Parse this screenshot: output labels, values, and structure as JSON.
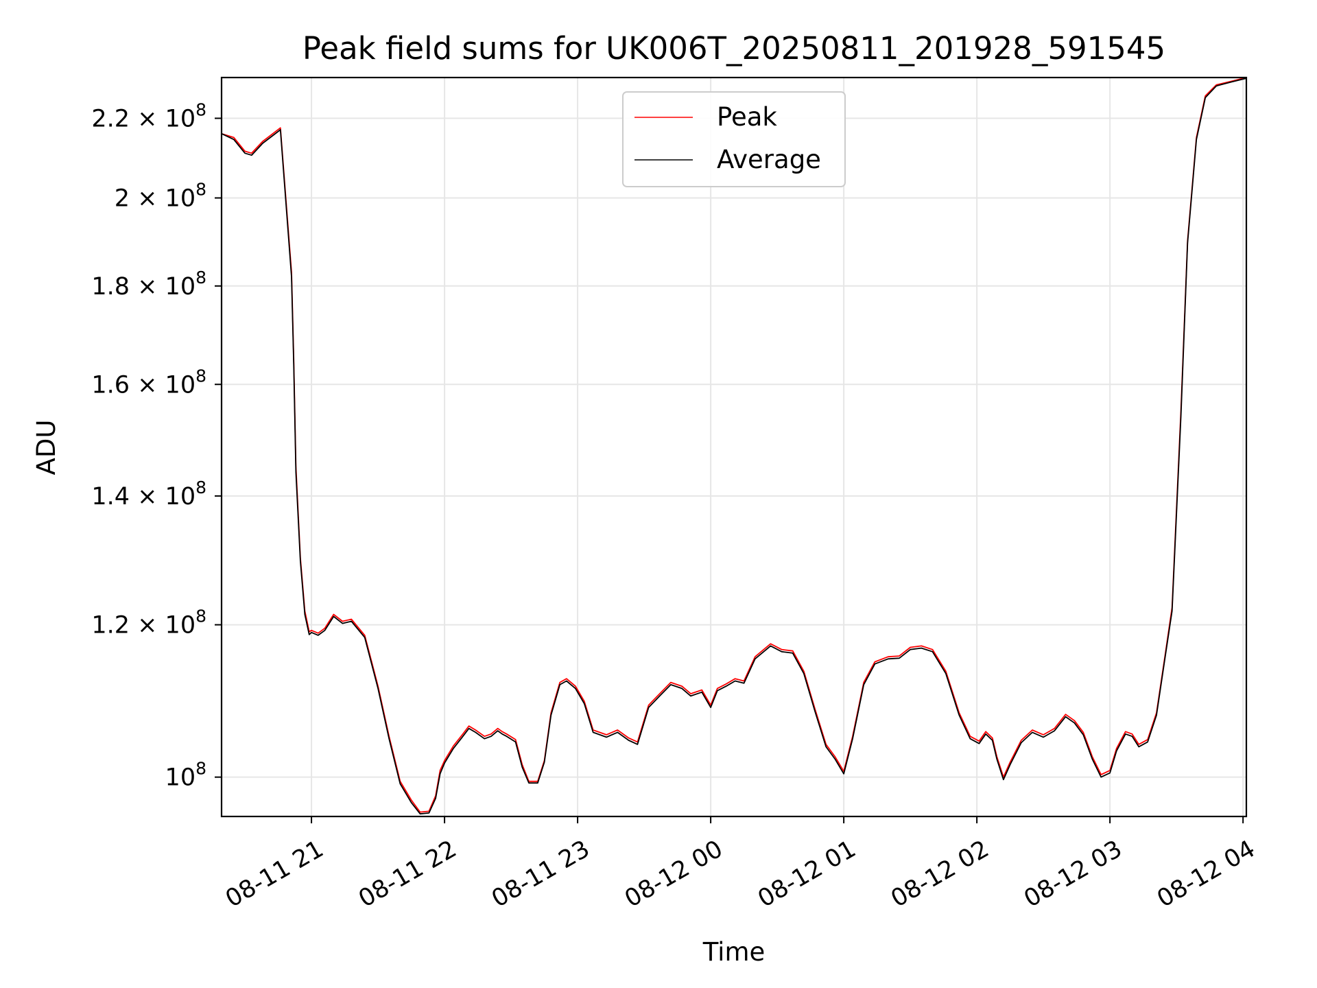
{
  "chart_data": {
    "type": "line",
    "title": "Peak field sums for UK006T_20250811_201928_591545",
    "xlabel": "Time",
    "ylabel": "ADU",
    "yscale": "log",
    "xlim": [
      "2025-08-11 20:19:28",
      "2025-08-12 04:01:30"
    ],
    "ylim": [
      95400000,
      231000000
    ],
    "grid": true,
    "legend_position": "top-center",
    "x_ticks": [
      {
        "value": "2025-08-11 21:00",
        "label": "08-11 21"
      },
      {
        "value": "2025-08-11 22:00",
        "label": "08-11 22"
      },
      {
        "value": "2025-08-11 23:00",
        "label": "08-11 23"
      },
      {
        "value": "2025-08-12 00:00",
        "label": "08-12 00"
      },
      {
        "value": "2025-08-12 01:00",
        "label": "08-12 01"
      },
      {
        "value": "2025-08-12 02:00",
        "label": "08-12 02"
      },
      {
        "value": "2025-08-12 03:00",
        "label": "08-12 03"
      },
      {
        "value": "2025-08-12 04:00",
        "label": "08-12 04"
      }
    ],
    "y_ticks": [
      {
        "value": 100000000,
        "mantissa": "",
        "exponent": "8"
      },
      {
        "value": 120000000,
        "mantissa": "1.2",
        "exponent": "8"
      },
      {
        "value": 140000000,
        "mantissa": "1.4",
        "exponent": "8"
      },
      {
        "value": 160000000,
        "mantissa": "1.6",
        "exponent": "8"
      },
      {
        "value": 180000000,
        "mantissa": "1.8",
        "exponent": "8"
      },
      {
        "value": 200000000,
        "mantissa": "2",
        "exponent": "8"
      },
      {
        "value": 220000000,
        "mantissa": "2.2",
        "exponent": "8"
      }
    ],
    "series": [
      {
        "name": "Peak",
        "color": "#ff0000",
        "points": [
          [
            "2025-08-11 20:19:28",
            216.0
          ],
          [
            "2025-08-11 20:25",
            215.0
          ],
          [
            "2025-08-11 20:30",
            211.5
          ],
          [
            "2025-08-11 20:33",
            211.0
          ],
          [
            "2025-08-11 20:38",
            214.0
          ],
          [
            "2025-08-11 20:46",
            217.5
          ],
          [
            "2025-08-11 20:51",
            183.0
          ],
          [
            "2025-08-11 20:52",
            165.0
          ],
          [
            "2025-08-11 20:53",
            145.0
          ],
          [
            "2025-08-11 20:55",
            130.0
          ],
          [
            "2025-08-11 20:57",
            122.0
          ],
          [
            "2025-08-11 20:59",
            119.0
          ],
          [
            "2025-08-11 21:00",
            119.2
          ],
          [
            "2025-08-11 21:03",
            118.8
          ],
          [
            "2025-08-11 21:06",
            119.5
          ],
          [
            "2025-08-11 21:10",
            121.5
          ],
          [
            "2025-08-11 21:14",
            120.5
          ],
          [
            "2025-08-11 21:18",
            120.8
          ],
          [
            "2025-08-11 21:24",
            118.5
          ],
          [
            "2025-08-11 21:30",
            111.5
          ],
          [
            "2025-08-11 21:35",
            105.0
          ],
          [
            "2025-08-11 21:40",
            99.5
          ],
          [
            "2025-08-11 21:45",
            97.3
          ],
          [
            "2025-08-11 21:49",
            95.9
          ],
          [
            "2025-08-11 21:53",
            96.0
          ],
          [
            "2025-08-11 21:56",
            97.8
          ],
          [
            "2025-08-11 21:58",
            100.8
          ],
          [
            "2025-08-11 22:00",
            102.0
          ],
          [
            "2025-08-11 22:04",
            103.8
          ],
          [
            "2025-08-11 22:08",
            105.2
          ],
          [
            "2025-08-11 22:11",
            106.3
          ],
          [
            "2025-08-11 22:14",
            105.8
          ],
          [
            "2025-08-11 22:18",
            105.0
          ],
          [
            "2025-08-11 22:21",
            105.3
          ],
          [
            "2025-08-11 22:24",
            106.0
          ],
          [
            "2025-08-11 22:26",
            105.6
          ],
          [
            "2025-08-11 22:28",
            105.3
          ],
          [
            "2025-08-11 22:32",
            104.6
          ],
          [
            "2025-08-11 22:35",
            101.5
          ],
          [
            "2025-08-11 22:38",
            99.5
          ],
          [
            "2025-08-11 22:42",
            99.5
          ],
          [
            "2025-08-11 22:45",
            102.0
          ],
          [
            "2025-08-11 22:48",
            108.0
          ],
          [
            "2025-08-11 22:52",
            112.0
          ],
          [
            "2025-08-11 22:55",
            112.5
          ],
          [
            "2025-08-11 22:59",
            111.5
          ],
          [
            "2025-08-11 23:03",
            109.5
          ],
          [
            "2025-08-11 23:07",
            105.8
          ],
          [
            "2025-08-11 23:13",
            105.2
          ],
          [
            "2025-08-11 23:18",
            105.8
          ],
          [
            "2025-08-11 23:23",
            104.8
          ],
          [
            "2025-08-11 23:27",
            104.3
          ],
          [
            "2025-08-11 23:32",
            109.0
          ],
          [
            "2025-08-11 23:37",
            110.5
          ],
          [
            "2025-08-11 23:42",
            112.0
          ],
          [
            "2025-08-11 23:47",
            111.5
          ],
          [
            "2025-08-11 23:51",
            110.5
          ],
          [
            "2025-08-11 23:56",
            111.0
          ],
          [
            "2025-08-12 00:00",
            109.0
          ],
          [
            "2025-08-12 00:03",
            111.2
          ],
          [
            "2025-08-12 00:07",
            111.8
          ],
          [
            "2025-08-12 00:11",
            112.5
          ],
          [
            "2025-08-12 00:15",
            112.2
          ],
          [
            "2025-08-12 00:20",
            115.5
          ],
          [
            "2025-08-12 00:27",
            117.3
          ],
          [
            "2025-08-12 00:32",
            116.5
          ],
          [
            "2025-08-12 00:37",
            116.3
          ],
          [
            "2025-08-12 00:42",
            113.5
          ],
          [
            "2025-08-12 00:47",
            108.5
          ],
          [
            "2025-08-12 00:52",
            104.0
          ],
          [
            "2025-08-12 00:56",
            102.5
          ],
          [
            "2025-08-12 01:00",
            100.7
          ],
          [
            "2025-08-12 01:04",
            105.0
          ],
          [
            "2025-08-12 01:09",
            112.0
          ],
          [
            "2025-08-12 01:14",
            114.8
          ],
          [
            "2025-08-12 01:20",
            115.5
          ],
          [
            "2025-08-12 01:25",
            115.6
          ],
          [
            "2025-08-12 01:30",
            116.8
          ],
          [
            "2025-08-12 01:35",
            117.0
          ],
          [
            "2025-08-12 01:40",
            116.5
          ],
          [
            "2025-08-12 01:46",
            113.5
          ],
          [
            "2025-08-12 01:52",
            108.0
          ],
          [
            "2025-08-12 01:57",
            105.0
          ],
          [
            "2025-08-12 02:01",
            104.4
          ],
          [
            "2025-08-12 02:04",
            105.6
          ],
          [
            "2025-08-12 02:07",
            104.8
          ],
          [
            "2025-08-12 02:09",
            102.5
          ],
          [
            "2025-08-12 02:12",
            100.0
          ],
          [
            "2025-08-12 02:15",
            101.8
          ],
          [
            "2025-08-12 02:20",
            104.5
          ],
          [
            "2025-08-12 02:25",
            105.8
          ],
          [
            "2025-08-12 02:30",
            105.2
          ],
          [
            "2025-08-12 02:35",
            106.0
          ],
          [
            "2025-08-12 02:40",
            107.8
          ],
          [
            "2025-08-12 02:44",
            107.0
          ],
          [
            "2025-08-12 02:48",
            105.5
          ],
          [
            "2025-08-12 02:52",
            102.5
          ],
          [
            "2025-08-12 02:56",
            100.3
          ],
          [
            "2025-08-12 03:00",
            100.8
          ],
          [
            "2025-08-12 03:03",
            103.5
          ],
          [
            "2025-08-12 03:07",
            105.6
          ],
          [
            "2025-08-12 03:10",
            105.3
          ],
          [
            "2025-08-12 03:13",
            104.0
          ],
          [
            "2025-08-12 03:17",
            104.6
          ],
          [
            "2025-08-12 03:21",
            108.0
          ],
          [
            "2025-08-12 03:25",
            116.0
          ],
          [
            "2025-08-12 03:28",
            122.5
          ],
          [
            "2025-08-12 03:32",
            155.0
          ],
          [
            "2025-08-12 03:35",
            190.0
          ],
          [
            "2025-08-12 03:39",
            215.0
          ],
          [
            "2025-08-12 03:43",
            226.0
          ],
          [
            "2025-08-12 03:48",
            229.0
          ],
          [
            "2025-08-12 03:55",
            230.0
          ],
          [
            "2025-08-12 04:01:30",
            231.0
          ]
        ]
      },
      {
        "name": "Average",
        "color": "#000000",
        "points": [
          [
            "2025-08-11 20:19:28",
            216.0
          ],
          [
            "2025-08-11 20:25",
            214.5
          ],
          [
            "2025-08-11 20:30",
            211.0
          ],
          [
            "2025-08-11 20:33",
            210.5
          ],
          [
            "2025-08-11 20:38",
            213.5
          ],
          [
            "2025-08-11 20:46",
            217.0
          ],
          [
            "2025-08-11 20:51",
            182.0
          ],
          [
            "2025-08-11 20:52",
            164.0
          ],
          [
            "2025-08-11 20:53",
            144.0
          ],
          [
            "2025-08-11 20:55",
            129.5
          ],
          [
            "2025-08-11 20:57",
            121.5
          ],
          [
            "2025-08-11 20:59",
            118.6
          ],
          [
            "2025-08-11 21:00",
            118.9
          ],
          [
            "2025-08-11 21:03",
            118.5
          ],
          [
            "2025-08-11 21:06",
            119.2
          ],
          [
            "2025-08-11 21:10",
            121.2
          ],
          [
            "2025-08-11 21:14",
            120.2
          ],
          [
            "2025-08-11 21:18",
            120.5
          ],
          [
            "2025-08-11 21:24",
            118.2
          ],
          [
            "2025-08-11 21:30",
            111.2
          ],
          [
            "2025-08-11 21:35",
            104.7
          ],
          [
            "2025-08-11 21:40",
            99.2
          ],
          [
            "2025-08-11 21:45",
            97.0
          ],
          [
            "2025-08-11 21:49",
            95.7
          ],
          [
            "2025-08-11 21:53",
            95.8
          ],
          [
            "2025-08-11 21:56",
            97.5
          ],
          [
            "2025-08-11 21:58",
            100.4
          ],
          [
            "2025-08-11 22:00",
            101.7
          ],
          [
            "2025-08-11 22:04",
            103.5
          ],
          [
            "2025-08-11 22:08",
            104.9
          ],
          [
            "2025-08-11 22:11",
            106.0
          ],
          [
            "2025-08-11 22:14",
            105.5
          ],
          [
            "2025-08-11 22:18",
            104.7
          ],
          [
            "2025-08-11 22:21",
            105.0
          ],
          [
            "2025-08-11 22:24",
            105.7
          ],
          [
            "2025-08-11 22:26",
            105.3
          ],
          [
            "2025-08-11 22:28",
            105.0
          ],
          [
            "2025-08-11 22:32",
            104.3
          ],
          [
            "2025-08-11 22:35",
            101.2
          ],
          [
            "2025-08-11 22:38",
            99.3
          ],
          [
            "2025-08-11 22:42",
            99.3
          ],
          [
            "2025-08-11 22:45",
            101.8
          ],
          [
            "2025-08-11 22:48",
            107.7
          ],
          [
            "2025-08-11 22:52",
            111.7
          ],
          [
            "2025-08-11 22:55",
            112.2
          ],
          [
            "2025-08-11 22:59",
            111.2
          ],
          [
            "2025-08-11 23:03",
            109.2
          ],
          [
            "2025-08-11 23:07",
            105.5
          ],
          [
            "2025-08-11 23:13",
            104.9
          ],
          [
            "2025-08-11 23:18",
            105.5
          ],
          [
            "2025-08-11 23:23",
            104.5
          ],
          [
            "2025-08-11 23:27",
            104.0
          ],
          [
            "2025-08-11 23:32",
            108.7
          ],
          [
            "2025-08-11 23:37",
            110.2
          ],
          [
            "2025-08-11 23:42",
            111.7
          ],
          [
            "2025-08-11 23:47",
            111.2
          ],
          [
            "2025-08-11 23:51",
            110.2
          ],
          [
            "2025-08-11 23:56",
            110.7
          ],
          [
            "2025-08-12 00:00",
            108.7
          ],
          [
            "2025-08-12 00:03",
            110.9
          ],
          [
            "2025-08-12 00:07",
            111.5
          ],
          [
            "2025-08-12 00:11",
            112.2
          ],
          [
            "2025-08-12 00:15",
            111.9
          ],
          [
            "2025-08-12 00:20",
            115.2
          ],
          [
            "2025-08-12 00:27",
            117.0
          ],
          [
            "2025-08-12 00:32",
            116.2
          ],
          [
            "2025-08-12 00:37",
            116.0
          ],
          [
            "2025-08-12 00:42",
            113.2
          ],
          [
            "2025-08-12 00:47",
            108.2
          ],
          [
            "2025-08-12 00:52",
            103.7
          ],
          [
            "2025-08-12 00:56",
            102.2
          ],
          [
            "2025-08-12 01:00",
            100.4
          ],
          [
            "2025-08-12 01:04",
            104.7
          ],
          [
            "2025-08-12 01:09",
            111.7
          ],
          [
            "2025-08-12 01:14",
            114.5
          ],
          [
            "2025-08-12 01:20",
            115.2
          ],
          [
            "2025-08-12 01:25",
            115.3
          ],
          [
            "2025-08-12 01:30",
            116.5
          ],
          [
            "2025-08-12 01:35",
            116.7
          ],
          [
            "2025-08-12 01:40",
            116.2
          ],
          [
            "2025-08-12 01:46",
            113.2
          ],
          [
            "2025-08-12 01:52",
            107.7
          ],
          [
            "2025-08-12 01:57",
            104.7
          ],
          [
            "2025-08-12 02:01",
            104.1
          ],
          [
            "2025-08-12 02:04",
            105.3
          ],
          [
            "2025-08-12 02:07",
            104.5
          ],
          [
            "2025-08-12 02:09",
            102.2
          ],
          [
            "2025-08-12 02:12",
            99.7
          ],
          [
            "2025-08-12 02:15",
            101.5
          ],
          [
            "2025-08-12 02:20",
            104.2
          ],
          [
            "2025-08-12 02:25",
            105.5
          ],
          [
            "2025-08-12 02:30",
            104.9
          ],
          [
            "2025-08-12 02:35",
            105.7
          ],
          [
            "2025-08-12 02:40",
            107.5
          ],
          [
            "2025-08-12 02:44",
            106.7
          ],
          [
            "2025-08-12 02:48",
            105.2
          ],
          [
            "2025-08-12 02:52",
            102.2
          ],
          [
            "2025-08-12 02:56",
            100.0
          ],
          [
            "2025-08-12 03:00",
            100.5
          ],
          [
            "2025-08-12 03:03",
            103.2
          ],
          [
            "2025-08-12 03:07",
            105.3
          ],
          [
            "2025-08-12 03:10",
            105.0
          ],
          [
            "2025-08-12 03:13",
            103.7
          ],
          [
            "2025-08-12 03:17",
            104.3
          ],
          [
            "2025-08-12 03:21",
            107.7
          ],
          [
            "2025-08-12 03:25",
            115.7
          ],
          [
            "2025-08-12 03:28",
            122.0
          ],
          [
            "2025-08-12 03:32",
            154.0
          ],
          [
            "2025-08-12 03:35",
            189.5
          ],
          [
            "2025-08-12 03:39",
            214.5
          ],
          [
            "2025-08-12 03:43",
            225.5
          ],
          [
            "2025-08-12 03:48",
            228.7
          ],
          [
            "2025-08-12 03:55",
            229.8
          ],
          [
            "2025-08-12 04:01:30",
            230.8
          ]
        ]
      }
    ],
    "y_values_unit_multiplier": 1000000
  }
}
